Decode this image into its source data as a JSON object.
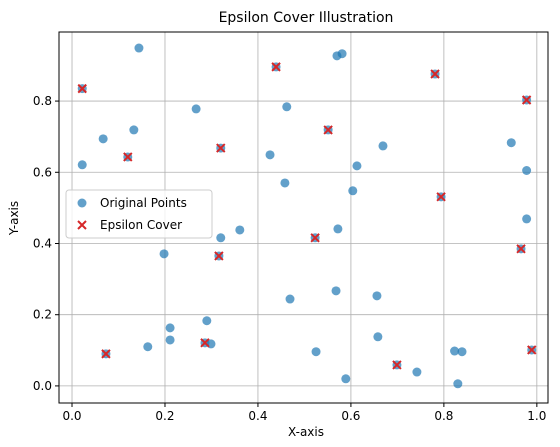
{
  "chart_data": {
    "type": "scatter",
    "title": "Epsilon Cover Illustration",
    "x_label": "X-axis",
    "y_label": "Y-axis",
    "xlim": [
      -0.028,
      1.024
    ],
    "ylim": [
      -0.048,
      0.994
    ],
    "xticks": [
      {
        "value": 0,
        "label": "0.0"
      },
      0.2,
      0.4,
      0.6,
      0.8,
      {
        "value": 1,
        "label": "1.0"
      }
    ],
    "yticks": [
      {
        "value": 0,
        "label": "0.0"
      },
      0.2,
      0.4,
      0.6,
      0.8
    ],
    "grid": true,
    "legend": "center left",
    "series": [
      {
        "name": "Original Points",
        "color": "#1f77b4",
        "marker": "circle",
        "x": [
          0.144,
          0.57,
          0.581,
          0.267,
          0.462,
          0.067,
          0.133,
          0.022,
          0.426,
          0.669,
          0.613,
          0.945,
          0.978,
          0.978,
          0.458,
          0.604,
          0.361,
          0.32,
          0.572,
          0.198,
          0.469,
          0.568,
          0.656,
          0.211,
          0.29,
          0.211,
          0.299,
          0.163,
          0.525,
          0.658,
          0.823,
          0.839,
          0.742,
          0.589,
          0.83,
          0.022,
          0.12,
          0.32,
          0.439,
          0.551,
          0.523,
          0.316,
          0.781,
          0.978,
          0.794,
          0.966,
          0.989,
          0.699,
          0.286,
          0.073
        ],
        "values": [
          0.949,
          0.927,
          0.933,
          0.778,
          0.784,
          0.694,
          0.719,
          0.621,
          0.649,
          0.674,
          0.618,
          0.683,
          0.605,
          0.469,
          0.57,
          0.548,
          0.438,
          0.416,
          0.441,
          0.371,
          0.244,
          0.267,
          0.253,
          0.163,
          0.183,
          0.129,
          0.118,
          0.11,
          0.096,
          0.138,
          0.098,
          0.096,
          0.039,
          0.02,
          0.006,
          0.835,
          0.643,
          0.668,
          0.896,
          0.719,
          0.416,
          0.365,
          0.876,
          0.803,
          0.531,
          0.385,
          0.101,
          0.059,
          0.121,
          0.09
        ]
      },
      {
        "name": "Epsilon Cover",
        "color": "#d62728",
        "marker": "x",
        "x": [
          0.022,
          0.12,
          0.32,
          0.439,
          0.551,
          0.523,
          0.316,
          0.781,
          0.978,
          0.794,
          0.966,
          0.989,
          0.699,
          0.286,
          0.073
        ],
        "values": [
          0.835,
          0.643,
          0.668,
          0.896,
          0.719,
          0.416,
          0.365,
          0.876,
          0.803,
          0.531,
          0.385,
          0.101,
          0.059,
          0.121,
          0.09
        ]
      }
    ]
  }
}
